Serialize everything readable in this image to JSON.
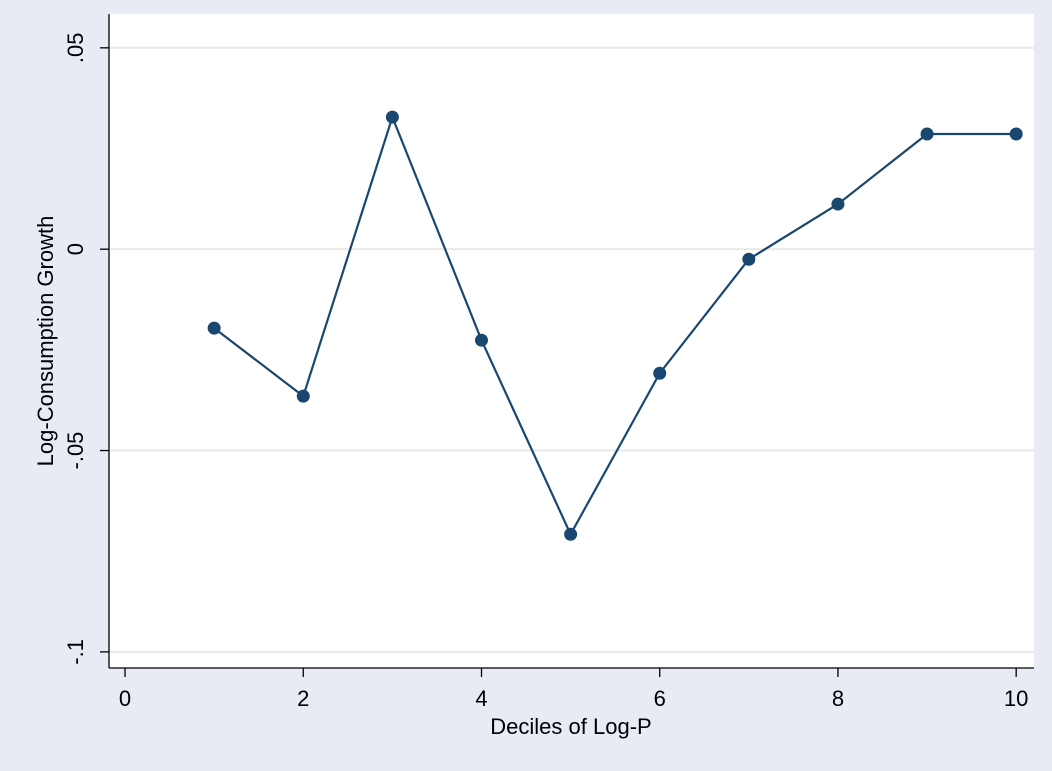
{
  "chart_data": {
    "type": "line",
    "xlabel": "Deciles of Log-P",
    "ylabel": "Log-Consumption Growth",
    "x": [
      1,
      2,
      3,
      4,
      5,
      6,
      7,
      8,
      9,
      10
    ],
    "values": [
      -0.0196,
      -0.0365,
      0.0328,
      -0.0226,
      -0.0708,
      -0.0308,
      -0.0025,
      0.0112,
      0.0286,
      0.0286
    ],
    "color": "#1a476f",
    "xlim": [
      -0.18,
      10.2
    ],
    "xticks": [
      0,
      2,
      4,
      6,
      8,
      10
    ],
    "ylim": [
      -0.104,
      0.0584
    ],
    "yticks": [
      {
        "value": -0.1,
        "label": "-.1"
      },
      {
        "value": -0.05,
        "label": "-.05"
      },
      0,
      {
        "value": 0.05,
        "label": ".05"
      }
    ],
    "grid": true
  }
}
